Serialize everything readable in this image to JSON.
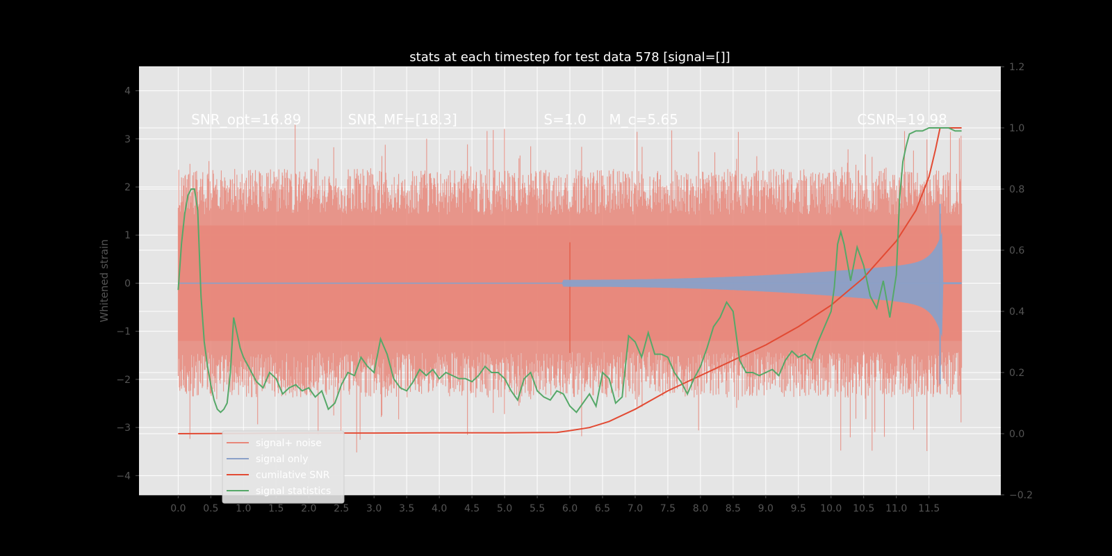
{
  "chart_data": {
    "type": "line",
    "title": "stats at each timestep for test data 578 [signal=[]]",
    "xlabel": "",
    "ylabel": "Whitened strain",
    "y2label": "",
    "xlim": [
      -0.6,
      12.6
    ],
    "ylim": [
      -4.4,
      4.5
    ],
    "y2lim": [
      -0.2,
      1.2
    ],
    "x_ticks": [
      "0.0",
      "0.5",
      "1.0",
      "1.5",
      "2.0",
      "2.5",
      "3.0",
      "3.5",
      "4.0",
      "4.5",
      "5.0",
      "5.5",
      "6.0",
      "6.5",
      "7.0",
      "7.5",
      "8.0",
      "8.5",
      "9.0",
      "9.5",
      "10.0",
      "10.5",
      "11.0",
      "11.5"
    ],
    "y_ticks": [
      "4",
      "3",
      "2",
      "1",
      "0",
      "−1",
      "−2",
      "−3",
      "−4"
    ],
    "y2_ticks": [
      "1.2",
      "1.0",
      "0.8",
      "0.6",
      "0.4",
      "0.2",
      "0.0",
      "−0.2"
    ],
    "grid": true,
    "annotations": [
      {
        "text": "SNR_opt=16.89",
        "x": 0.2,
        "y": 3.3
      },
      {
        "text": "SNR_MF=[18.3]",
        "x": 2.6,
        "y": 3.3
      },
      {
        "text": "S=1.0",
        "x": 5.6,
        "y": 3.3
      },
      {
        "text": "M_c=5.65",
        "x": 6.6,
        "y": 3.3
      },
      {
        "text": "CSNR=19.98",
        "x": 10.4,
        "y": 3.3
      }
    ],
    "legend": {
      "placement": "lower-left",
      "entries": [
        "signal+ noise",
        "signal only",
        "cumilative SNR",
        "signal statistics"
      ]
    },
    "series": [
      {
        "name": "signal+ noise",
        "axis": "left",
        "color": "#e8877a",
        "kind": "noise",
        "x_range": [
          0.0,
          12.0
        ],
        "amplitude": 1.9,
        "max": 4.1,
        "min": -4.0
      },
      {
        "name": "signal only",
        "axis": "left",
        "color": "#8aa0c8",
        "kind": "chirp",
        "x_range": [
          0.0,
          12.0
        ],
        "onset": 5.9,
        "peak_x": 11.67,
        "peak": 1.65,
        "trough": -2.1
      },
      {
        "name": "cumilative SNR",
        "axis": "right",
        "color": "#e24a33",
        "x": [
          0.0,
          1.0,
          2.0,
          3.0,
          4.0,
          5.0,
          5.8,
          6.0,
          6.3,
          6.6,
          7.0,
          7.5,
          8.0,
          8.5,
          9.0,
          9.5,
          10.0,
          10.5,
          11.0,
          11.3,
          11.5,
          11.6,
          11.67,
          12.0
        ],
        "y": [
          0.0,
          0.001,
          0.002,
          0.002,
          0.003,
          0.003,
          0.004,
          0.01,
          0.02,
          0.04,
          0.08,
          0.14,
          0.19,
          0.24,
          0.29,
          0.35,
          0.42,
          0.51,
          0.63,
          0.73,
          0.84,
          0.93,
          1.0,
          1.0
        ]
      },
      {
        "name": "signal statistics",
        "axis": "right",
        "color": "#55a868",
        "x": [
          0.0,
          0.05,
          0.1,
          0.15,
          0.2,
          0.25,
          0.3,
          0.35,
          0.4,
          0.45,
          0.5,
          0.55,
          0.6,
          0.65,
          0.7,
          0.75,
          0.8,
          0.85,
          0.9,
          0.95,
          1.0,
          1.1,
          1.2,
          1.3,
          1.4,
          1.5,
          1.6,
          1.7,
          1.8,
          1.9,
          2.0,
          2.1,
          2.2,
          2.3,
          2.4,
          2.5,
          2.6,
          2.7,
          2.8,
          2.9,
          3.0,
          3.1,
          3.2,
          3.3,
          3.4,
          3.5,
          3.6,
          3.7,
          3.8,
          3.9,
          4.0,
          4.1,
          4.2,
          4.3,
          4.4,
          4.5,
          4.6,
          4.7,
          4.8,
          4.9,
          5.0,
          5.1,
          5.2,
          5.3,
          5.4,
          5.5,
          5.6,
          5.7,
          5.8,
          5.9,
          6.0,
          6.1,
          6.2,
          6.3,
          6.4,
          6.5,
          6.6,
          6.7,
          6.8,
          6.9,
          7.0,
          7.1,
          7.2,
          7.3,
          7.4,
          7.5,
          7.6,
          7.7,
          7.8,
          7.9,
          8.0,
          8.1,
          8.2,
          8.3,
          8.4,
          8.5,
          8.6,
          8.7,
          8.8,
          8.9,
          9.0,
          9.1,
          9.2,
          9.3,
          9.4,
          9.5,
          9.6,
          9.7,
          9.8,
          9.9,
          10.0,
          10.05,
          10.1,
          10.15,
          10.2,
          10.3,
          10.4,
          10.5,
          10.6,
          10.7,
          10.8,
          10.9,
          11.0,
          11.05,
          11.1,
          11.15,
          11.2,
          11.3,
          11.4,
          11.5,
          11.6,
          11.7,
          11.8,
          11.9,
          11.95,
          12.0
        ],
        "y": [
          0.47,
          0.62,
          0.72,
          0.78,
          0.8,
          0.8,
          0.73,
          0.45,
          0.3,
          0.22,
          0.16,
          0.11,
          0.08,
          0.07,
          0.08,
          0.1,
          0.2,
          0.38,
          0.33,
          0.28,
          0.25,
          0.21,
          0.17,
          0.15,
          0.2,
          0.18,
          0.13,
          0.15,
          0.16,
          0.14,
          0.15,
          0.12,
          0.14,
          0.08,
          0.1,
          0.16,
          0.2,
          0.19,
          0.25,
          0.22,
          0.2,
          0.31,
          0.26,
          0.18,
          0.15,
          0.14,
          0.17,
          0.21,
          0.19,
          0.21,
          0.18,
          0.2,
          0.19,
          0.18,
          0.18,
          0.17,
          0.19,
          0.22,
          0.2,
          0.2,
          0.18,
          0.14,
          0.11,
          0.18,
          0.2,
          0.14,
          0.12,
          0.11,
          0.14,
          0.13,
          0.09,
          0.07,
          0.1,
          0.13,
          0.09,
          0.2,
          0.18,
          0.1,
          0.12,
          0.32,
          0.3,
          0.25,
          0.33,
          0.26,
          0.26,
          0.25,
          0.2,
          0.17,
          0.13,
          0.18,
          0.22,
          0.28,
          0.35,
          0.38,
          0.43,
          0.4,
          0.24,
          0.2,
          0.2,
          0.19,
          0.2,
          0.21,
          0.19,
          0.24,
          0.27,
          0.25,
          0.26,
          0.24,
          0.3,
          0.35,
          0.4,
          0.48,
          0.62,
          0.66,
          0.62,
          0.5,
          0.61,
          0.55,
          0.45,
          0.41,
          0.5,
          0.38,
          0.52,
          0.77,
          0.89,
          0.94,
          0.98,
          0.99,
          0.99,
          1.0,
          1.0,
          1.0,
          1.0,
          0.99,
          0.99,
          0.99
        ]
      }
    ]
  }
}
